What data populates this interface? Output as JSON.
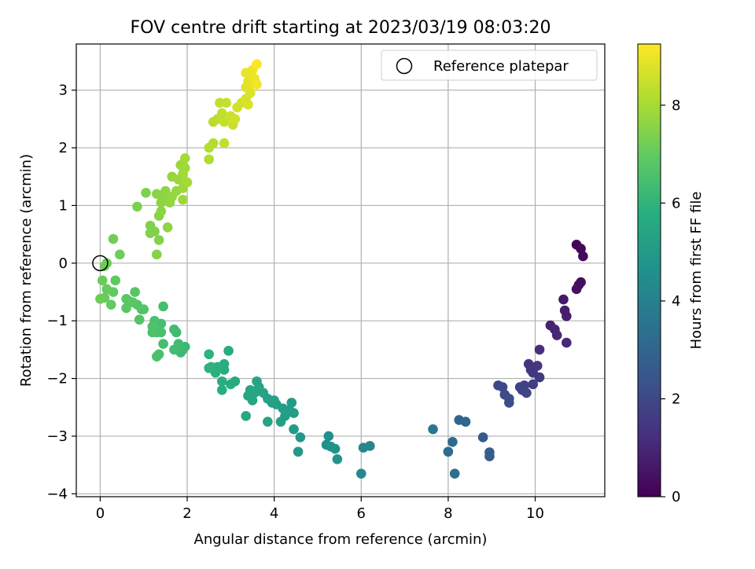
{
  "chart_data": {
    "type": "scatter",
    "title": "FOV centre drift starting at 2023/03/19 08:03:20",
    "xlabel": "Angular distance from reference (arcmin)",
    "ylabel": "Rotation from reference (arcmin)",
    "xlim": [
      -0.55,
      11.6
    ],
    "ylim": [
      -4.05,
      3.8
    ],
    "xticks": [
      0,
      2,
      4,
      6,
      8,
      10
    ],
    "yticks": [
      -4,
      -3,
      -2,
      -1,
      0,
      1,
      2,
      3
    ],
    "grid": true,
    "legend": {
      "position": "top-right",
      "entries": [
        "Reference platepar"
      ]
    },
    "reference_point": {
      "x": 0,
      "y": 0
    },
    "colorbar": {
      "label": "Hours from first FF file",
      "range": [
        0,
        9.25
      ],
      "ticks": [
        0,
        2,
        4,
        6,
        8
      ],
      "colormap": "viridis"
    },
    "series": [
      {
        "color_value_unit": "hours",
        "points": [
          {
            "x": 10.95,
            "y": 0.32,
            "c": 0.1
          },
          {
            "x": 11.05,
            "y": 0.25,
            "c": 0.15
          },
          {
            "x": 11.1,
            "y": 0.12,
            "c": 0.2
          },
          {
            "x": 11.05,
            "y": -0.33,
            "c": 0.3
          },
          {
            "x": 11.0,
            "y": -0.38,
            "c": 0.35
          },
          {
            "x": 10.95,
            "y": -0.45,
            "c": 0.4
          },
          {
            "x": 10.65,
            "y": -0.63,
            "c": 0.6
          },
          {
            "x": 10.68,
            "y": -0.82,
            "c": 0.7
          },
          {
            "x": 10.72,
            "y": -0.92,
            "c": 0.75
          },
          {
            "x": 10.35,
            "y": -1.08,
            "c": 0.9
          },
          {
            "x": 10.45,
            "y": -1.15,
            "c": 0.95
          },
          {
            "x": 10.5,
            "y": -1.25,
            "c": 1.0
          },
          {
            "x": 10.72,
            "y": -1.38,
            "c": 1.05
          },
          {
            "x": 10.1,
            "y": -1.5,
            "c": 1.2
          },
          {
            "x": 9.85,
            "y": -1.75,
            "c": 1.4
          },
          {
            "x": 10.05,
            "y": -1.78,
            "c": 1.45
          },
          {
            "x": 9.95,
            "y": -1.9,
            "c": 1.5
          },
          {
            "x": 9.9,
            "y": -1.85,
            "c": 1.5
          },
          {
            "x": 10.1,
            "y": -1.98,
            "c": 1.6
          },
          {
            "x": 9.95,
            "y": -2.1,
            "c": 1.7
          },
          {
            "x": 9.75,
            "y": -2.12,
            "c": 1.75
          },
          {
            "x": 9.65,
            "y": -2.15,
            "c": 1.8
          },
          {
            "x": 9.7,
            "y": -2.2,
            "c": 1.85
          },
          {
            "x": 9.8,
            "y": -2.25,
            "c": 1.9
          },
          {
            "x": 9.15,
            "y": -2.12,
            "c": 2.0
          },
          {
            "x": 9.25,
            "y": -2.15,
            "c": 2.05
          },
          {
            "x": 9.3,
            "y": -2.28,
            "c": 2.1
          },
          {
            "x": 9.4,
            "y": -2.35,
            "c": 2.15
          },
          {
            "x": 9.4,
            "y": -2.42,
            "c": 2.2
          },
          {
            "x": 8.8,
            "y": -3.02,
            "c": 2.6
          },
          {
            "x": 8.95,
            "y": -3.28,
            "c": 2.7
          },
          {
            "x": 8.95,
            "y": -3.35,
            "c": 2.75
          },
          {
            "x": 8.25,
            "y": -2.72,
            "c": 3.0
          },
          {
            "x": 8.4,
            "y": -2.75,
            "c": 3.05
          },
          {
            "x": 8.1,
            "y": -3.1,
            "c": 3.2
          },
          {
            "x": 8.0,
            "y": -3.27,
            "c": 3.3
          },
          {
            "x": 8.15,
            "y": -3.65,
            "c": 3.4
          },
          {
            "x": 7.65,
            "y": -2.88,
            "c": 3.6
          },
          {
            "x": 6.2,
            "y": -3.17,
            "c": 4.2
          },
          {
            "x": 6.05,
            "y": -3.2,
            "c": 4.25
          },
          {
            "x": 6.0,
            "y": -3.65,
            "c": 4.3
          },
          {
            "x": 5.25,
            "y": -3.0,
            "c": 4.55
          },
          {
            "x": 5.2,
            "y": -3.15,
            "c": 4.6
          },
          {
            "x": 5.3,
            "y": -3.18,
            "c": 4.65
          },
          {
            "x": 5.4,
            "y": -3.22,
            "c": 4.7
          },
          {
            "x": 5.45,
            "y": -3.4,
            "c": 4.75
          },
          {
            "x": 4.6,
            "y": -3.02,
            "c": 4.85
          },
          {
            "x": 4.55,
            "y": -3.27,
            "c": 4.9
          },
          {
            "x": 4.45,
            "y": -2.88,
            "c": 4.95
          },
          {
            "x": 4.4,
            "y": -2.42,
            "c": 5.0
          },
          {
            "x": 4.45,
            "y": -2.6,
            "c": 5.05
          },
          {
            "x": 4.35,
            "y": -2.55,
            "c": 5.1
          },
          {
            "x": 4.25,
            "y": -2.65,
            "c": 5.1
          },
          {
            "x": 4.2,
            "y": -2.52,
            "c": 5.15
          },
          {
            "x": 4.15,
            "y": -2.75,
            "c": 5.2
          },
          {
            "x": 4.05,
            "y": -2.45,
            "c": 5.2
          },
          {
            "x": 4.0,
            "y": -2.38,
            "c": 5.25
          },
          {
            "x": 3.95,
            "y": -2.42,
            "c": 5.3
          },
          {
            "x": 3.85,
            "y": -2.35,
            "c": 5.3
          },
          {
            "x": 3.85,
            "y": -2.75,
            "c": 5.35
          },
          {
            "x": 3.75,
            "y": -2.25,
            "c": 5.35
          },
          {
            "x": 3.65,
            "y": -2.15,
            "c": 5.4
          },
          {
            "x": 3.6,
            "y": -2.05,
            "c": 5.4
          },
          {
            "x": 3.55,
            "y": -2.25,
            "c": 5.45
          },
          {
            "x": 3.5,
            "y": -2.38,
            "c": 5.45
          },
          {
            "x": 3.45,
            "y": -2.2,
            "c": 5.5
          },
          {
            "x": 3.4,
            "y": -2.3,
            "c": 5.5
          },
          {
            "x": 3.35,
            "y": -2.65,
            "c": 5.55
          },
          {
            "x": 3.1,
            "y": -2.05,
            "c": 5.6
          },
          {
            "x": 3.0,
            "y": -2.1,
            "c": 5.65
          },
          {
            "x": 2.95,
            "y": -1.52,
            "c": 5.7
          },
          {
            "x": 2.85,
            "y": -1.75,
            "c": 5.75
          },
          {
            "x": 2.85,
            "y": -1.85,
            "c": 5.75
          },
          {
            "x": 2.8,
            "y": -2.05,
            "c": 5.8
          },
          {
            "x": 2.8,
            "y": -2.2,
            "c": 5.8
          },
          {
            "x": 2.7,
            "y": -1.8,
            "c": 5.85
          },
          {
            "x": 2.65,
            "y": -1.9,
            "c": 5.85
          },
          {
            "x": 2.55,
            "y": -1.8,
            "c": 5.9
          },
          {
            "x": 2.5,
            "y": -1.58,
            "c": 5.9
          },
          {
            "x": 2.5,
            "y": -1.82,
            "c": 5.95
          },
          {
            "x": 1.95,
            "y": -1.45,
            "c": 6.2
          },
          {
            "x": 1.9,
            "y": -1.5,
            "c": 6.25
          },
          {
            "x": 1.85,
            "y": -1.55,
            "c": 6.25
          },
          {
            "x": 1.8,
            "y": -1.4,
            "c": 6.3
          },
          {
            "x": 1.75,
            "y": -1.2,
            "c": 6.3
          },
          {
            "x": 1.7,
            "y": -1.5,
            "c": 6.35
          },
          {
            "x": 1.7,
            "y": -1.15,
            "c": 6.35
          },
          {
            "x": 1.45,
            "y": -1.4,
            "c": 6.4
          },
          {
            "x": 1.45,
            "y": -0.75,
            "c": 6.45
          },
          {
            "x": 1.4,
            "y": -1.05,
            "c": 6.45
          },
          {
            "x": 1.4,
            "y": -1.2,
            "c": 6.5
          },
          {
            "x": 1.35,
            "y": -1.58,
            "c": 6.5
          },
          {
            "x": 1.3,
            "y": -1.2,
            "c": 6.5
          },
          {
            "x": 1.3,
            "y": -1.62,
            "c": 6.55
          },
          {
            "x": 1.25,
            "y": -1.0,
            "c": 6.55
          },
          {
            "x": 1.2,
            "y": -1.1,
            "c": 6.6
          },
          {
            "x": 1.2,
            "y": -1.2,
            "c": 6.6
          },
          {
            "x": 1.0,
            "y": -0.8,
            "c": 6.65
          },
          {
            "x": 0.95,
            "y": -0.8,
            "c": 6.7
          },
          {
            "x": 0.9,
            "y": -0.98,
            "c": 6.7
          },
          {
            "x": 0.85,
            "y": -0.72,
            "c": 6.75
          },
          {
            "x": 0.8,
            "y": -0.5,
            "c": 6.75
          },
          {
            "x": 0.75,
            "y": -0.68,
            "c": 6.8
          },
          {
            "x": 0.65,
            "y": -0.65,
            "c": 6.8
          },
          {
            "x": 0.6,
            "y": -0.62,
            "c": 6.85
          },
          {
            "x": 0.6,
            "y": -0.78,
            "c": 6.85
          },
          {
            "x": 0.35,
            "y": -0.3,
            "c": 6.95
          },
          {
            "x": 0.3,
            "y": -0.5,
            "c": 7.0
          },
          {
            "x": 0.25,
            "y": -0.72,
            "c": 7.0
          },
          {
            "x": 0.15,
            "y": -0.45,
            "c": 7.05
          },
          {
            "x": 0.1,
            "y": -0.6,
            "c": 7.05
          },
          {
            "x": 0.05,
            "y": -0.3,
            "c": 7.1
          },
          {
            "x": 0.0,
            "y": -0.62,
            "c": 7.1
          },
          {
            "x": 0.1,
            "y": -0.05,
            "c": 7.15
          },
          {
            "x": 0.15,
            "y": 0.0,
            "c": 7.15
          },
          {
            "x": 0.3,
            "y": 0.42,
            "c": 7.2
          },
          {
            "x": 0.45,
            "y": 0.15,
            "c": 7.2
          },
          {
            "x": 0.85,
            "y": 0.98,
            "c": 7.35
          },
          {
            "x": 1.05,
            "y": 1.22,
            "c": 7.4
          },
          {
            "x": 1.15,
            "y": 0.65,
            "c": 7.4
          },
          {
            "x": 1.15,
            "y": 0.52,
            "c": 7.45
          },
          {
            "x": 1.25,
            "y": 0.55,
            "c": 7.45
          },
          {
            "x": 1.3,
            "y": 0.15,
            "c": 7.5
          },
          {
            "x": 1.35,
            "y": 0.4,
            "c": 7.5
          },
          {
            "x": 1.3,
            "y": 1.2,
            "c": 7.55
          },
          {
            "x": 1.35,
            "y": 0.82,
            "c": 7.55
          },
          {
            "x": 1.4,
            "y": 1.05,
            "c": 7.6
          },
          {
            "x": 1.4,
            "y": 0.9,
            "c": 7.6
          },
          {
            "x": 1.45,
            "y": 1.12,
            "c": 7.6
          },
          {
            "x": 1.5,
            "y": 1.25,
            "c": 7.65
          },
          {
            "x": 1.55,
            "y": 0.62,
            "c": 7.65
          },
          {
            "x": 1.6,
            "y": 1.05,
            "c": 7.7
          },
          {
            "x": 1.65,
            "y": 1.15,
            "c": 7.7
          },
          {
            "x": 1.65,
            "y": 1.5,
            "c": 7.75
          },
          {
            "x": 1.75,
            "y": 1.25,
            "c": 7.75
          },
          {
            "x": 1.8,
            "y": 1.45,
            "c": 7.8
          },
          {
            "x": 1.85,
            "y": 1.7,
            "c": 7.8
          },
          {
            "x": 1.9,
            "y": 1.1,
            "c": 7.85
          },
          {
            "x": 1.9,
            "y": 1.3,
            "c": 7.85
          },
          {
            "x": 1.9,
            "y": 1.55,
            "c": 7.9
          },
          {
            "x": 1.95,
            "y": 1.65,
            "c": 7.9
          },
          {
            "x": 1.95,
            "y": 1.82,
            "c": 7.95
          },
          {
            "x": 2.0,
            "y": 1.4,
            "c": 7.95
          },
          {
            "x": 2.5,
            "y": 1.8,
            "c": 8.15
          },
          {
            "x": 2.5,
            "y": 2.0,
            "c": 8.2
          },
          {
            "x": 2.6,
            "y": 2.08,
            "c": 8.2
          },
          {
            "x": 2.6,
            "y": 2.45,
            "c": 8.25
          },
          {
            "x": 2.7,
            "y": 2.5,
            "c": 8.3
          },
          {
            "x": 2.75,
            "y": 2.78,
            "c": 8.35
          },
          {
            "x": 2.8,
            "y": 2.6,
            "c": 8.35
          },
          {
            "x": 2.85,
            "y": 2.08,
            "c": 8.4
          },
          {
            "x": 2.85,
            "y": 2.45,
            "c": 8.4
          },
          {
            "x": 2.9,
            "y": 2.78,
            "c": 8.45
          },
          {
            "x": 3.0,
            "y": 2.55,
            "c": 8.5
          },
          {
            "x": 3.05,
            "y": 2.4,
            "c": 8.5
          },
          {
            "x": 3.1,
            "y": 2.5,
            "c": 8.55
          },
          {
            "x": 3.15,
            "y": 2.7,
            "c": 8.6
          },
          {
            "x": 3.25,
            "y": 2.78,
            "c": 8.65
          },
          {
            "x": 3.35,
            "y": 2.85,
            "c": 8.7
          },
          {
            "x": 3.4,
            "y": 2.75,
            "c": 8.7
          },
          {
            "x": 3.45,
            "y": 2.95,
            "c": 8.75
          },
          {
            "x": 3.35,
            "y": 3.05,
            "c": 8.8
          },
          {
            "x": 3.4,
            "y": 3.15,
            "c": 8.85
          },
          {
            "x": 3.45,
            "y": 3.25,
            "c": 8.9
          },
          {
            "x": 3.5,
            "y": 3.1,
            "c": 8.9
          },
          {
            "x": 3.35,
            "y": 3.3,
            "c": 8.95
          },
          {
            "x": 3.5,
            "y": 3.35,
            "c": 9.0
          },
          {
            "x": 3.55,
            "y": 3.2,
            "c": 9.05
          },
          {
            "x": 3.6,
            "y": 3.1,
            "c": 9.1
          },
          {
            "x": 3.6,
            "y": 3.45,
            "c": 9.2
          }
        ]
      }
    ]
  }
}
